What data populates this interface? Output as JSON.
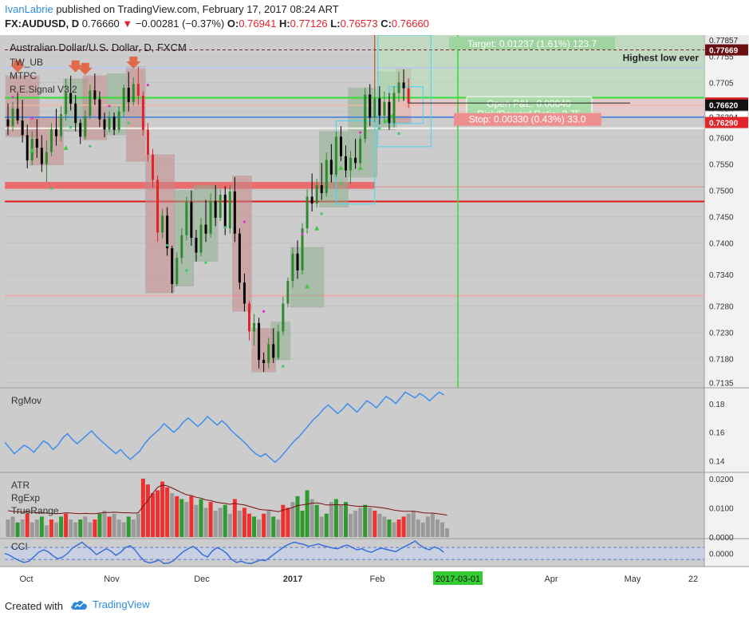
{
  "header": {
    "author": "IvanLabrie",
    "published_text": " published on TradingView.com, February 17, 2017 08:24 ART",
    "symbol": "FX:AUDUSD, D",
    "last": "0.76660",
    "change_arrow": "▼",
    "change": "−0.00281 (−0.37%)",
    "o_label": "O:",
    "o_value": "0.76941",
    "h_label": "H:",
    "h_value": "0.77126",
    "l_label": "L:",
    "l_value": "0.76573",
    "c_label": "C:",
    "c_value": "0.76660"
  },
  "footer": {
    "created_with": "Created with",
    "brand": "TradingView",
    "brand_icon": "cloud-icon"
  },
  "colors": {
    "panel_bg": "#cccccc",
    "bull_body": "#2f8a2f",
    "bear_body": "#000000",
    "red_candle": "#e0242a",
    "green_line": "#33dd33",
    "blue_line": "#3a7bdc",
    "red_line": "#e01818",
    "cyan_box": "#47d5f0",
    "rgmov_line": "#3d8ef0",
    "cci_line": "#3a6fd8"
  },
  "chart_data": [
    {
      "type": "candlestick",
      "title": "Australian Dollar/U.S. Dollar, D, FXCM",
      "indicators": [
        "TW_UB",
        "MTPC",
        "R.E.Signal V3.2"
      ],
      "x_labels": [
        "Oct",
        "Nov",
        "Dec",
        "2017",
        "Feb",
        "2017-03-01",
        "Apr",
        "May",
        "22"
      ],
      "y_ticks": [
        0.7135,
        0.718,
        0.723,
        0.728,
        0.734,
        0.74,
        0.745,
        0.75,
        0.755,
        0.76,
        0.765,
        0.7705,
        0.7755
      ],
      "ylim": [
        0.7125,
        0.7795
      ],
      "price_labels": [
        {
          "value": 0.77857,
          "text": "0.77857",
          "style": "light"
        },
        {
          "value": 0.77669,
          "text": "0.77669",
          "style": "dark-red"
        },
        {
          "value": 0.7666,
          "text": "0.76660",
          "style": "red"
        },
        {
          "value": 0.7662,
          "text": "0.76620",
          "style": "black"
        },
        {
          "value": 0.76394,
          "text": "0.76394",
          "style": "white"
        },
        {
          "value": 0.7629,
          "text": "0.76290",
          "style": "red"
        }
      ],
      "annotations": {
        "highest_low": "Highest low ever",
        "target": "Target: 0.01237 (1.61%) 123.7",
        "open_pnl": "Open P&L: 0.00040",
        "risk_reward": "Risk/Reward Ratio: 3.75",
        "stop": "Stop: 0.00330 (0.43%) 33.0"
      },
      "levels": {
        "dashed_resistance": 0.77669,
        "green_entry": 0.7676,
        "salmon_line": 0.7662,
        "blue_line": 0.7639,
        "pale_line": 0.7618,
        "red_zone": [
          0.7503,
          0.7516
        ],
        "red_line": 0.7479,
        "pink_low": 0.73,
        "lavender_top": 0.7733
      },
      "candles": [
        [
          0.7635,
          0.7665,
          0.7605,
          0.7622
        ],
        [
          0.7622,
          0.7668,
          0.7612,
          0.7655
        ],
        [
          0.7655,
          0.7685,
          0.7626,
          0.7633
        ],
        [
          0.7633,
          0.7672,
          0.7591,
          0.7605
        ],
        [
          0.7605,
          0.7625,
          0.7542,
          0.7557
        ],
        [
          0.7557,
          0.7612,
          0.7548,
          0.7598
        ],
        [
          0.7598,
          0.7635,
          0.7562,
          0.7581
        ],
        [
          0.7581,
          0.7605,
          0.7535,
          0.755
        ],
        [
          0.755,
          0.7595,
          0.7516,
          0.7573
        ],
        [
          0.7573,
          0.7628,
          0.7565,
          0.7616
        ],
        [
          0.7616,
          0.7655,
          0.7585,
          0.7603
        ],
        [
          0.7603,
          0.766,
          0.7593,
          0.7645
        ],
        [
          0.7645,
          0.7712,
          0.7632,
          0.7685
        ],
        [
          0.7685,
          0.7718,
          0.7652,
          0.7665
        ],
        [
          0.7665,
          0.7681,
          0.7612,
          0.7628
        ],
        [
          0.7628,
          0.7635,
          0.7588,
          0.7602
        ],
        [
          0.7602,
          0.7652,
          0.7596,
          0.7641
        ],
        [
          0.7641,
          0.7701,
          0.7636,
          0.769
        ],
        [
          0.769,
          0.7722,
          0.7662,
          0.7673
        ],
        [
          0.7673,
          0.7688,
          0.762,
          0.7635
        ],
        [
          0.7635,
          0.7648,
          0.7601,
          0.7616
        ],
        [
          0.7616,
          0.765,
          0.761,
          0.764
        ],
        [
          0.764,
          0.7648,
          0.7605,
          0.7615
        ],
        [
          0.7615,
          0.766,
          0.761,
          0.765
        ],
        [
          0.765,
          0.7701,
          0.764,
          0.7695
        ],
        [
          0.7695,
          0.7725,
          0.765,
          0.7668
        ],
        [
          0.7668,
          0.7715,
          0.7661,
          0.7702
        ],
        [
          0.7702,
          0.7735,
          0.7662,
          0.768
        ],
        [
          0.768,
          0.7688,
          0.7604,
          0.7615
        ],
        [
          0.7615,
          0.7628,
          0.7555,
          0.7568
        ],
        [
          0.7568,
          0.7579,
          0.7505,
          0.752
        ],
        [
          0.752,
          0.7528,
          0.7402,
          0.742
        ],
        [
          0.742,
          0.7465,
          0.7408,
          0.7452
        ],
        [
          0.7452,
          0.7468,
          0.7376,
          0.739
        ],
        [
          0.739,
          0.7395,
          0.7305,
          0.7322
        ],
        [
          0.7322,
          0.7382,
          0.7318,
          0.7372
        ],
        [
          0.7372,
          0.7428,
          0.736,
          0.7415
        ],
        [
          0.7415,
          0.7488,
          0.7405,
          0.7478
        ],
        [
          0.7478,
          0.75,
          0.7395,
          0.741
        ],
        [
          0.741,
          0.7425,
          0.7365,
          0.7382
        ],
        [
          0.7382,
          0.7448,
          0.7375,
          0.7435
        ],
        [
          0.7435,
          0.7482,
          0.7402,
          0.7418
        ],
        [
          0.7418,
          0.7495,
          0.741,
          0.748
        ],
        [
          0.748,
          0.751,
          0.7432,
          0.7448
        ],
        [
          0.7448,
          0.7502,
          0.7442,
          0.7492
        ],
        [
          0.7492,
          0.7508,
          0.7415,
          0.7428
        ],
        [
          0.7428,
          0.751,
          0.7418,
          0.7498
        ],
        [
          0.7498,
          0.7525,
          0.7402,
          0.7418
        ],
        [
          0.7418,
          0.7428,
          0.7312,
          0.7325
        ],
        [
          0.7325,
          0.7342,
          0.727,
          0.7285
        ],
        [
          0.7285,
          0.729,
          0.7215,
          0.7232
        ],
        [
          0.7232,
          0.7265,
          0.7205,
          0.7248
        ],
        [
          0.7248,
          0.7258,
          0.7162,
          0.7178
        ],
        [
          0.7178,
          0.7192,
          0.7155,
          0.7172
        ],
        [
          0.7172,
          0.722,
          0.7162,
          0.7208
        ],
        [
          0.7208,
          0.7238,
          0.7172,
          0.7182
        ],
        [
          0.7182,
          0.7245,
          0.7178,
          0.7232
        ],
        [
          0.7232,
          0.7298,
          0.7225,
          0.7285
        ],
        [
          0.7285,
          0.7335,
          0.7278,
          0.7328
        ],
        [
          0.7328,
          0.7392,
          0.7315,
          0.738
        ],
        [
          0.738,
          0.7405,
          0.7332,
          0.7348
        ],
        [
          0.7348,
          0.7438,
          0.734,
          0.7428
        ],
        [
          0.7428,
          0.7502,
          0.7418,
          0.7488
        ],
        [
          0.7488,
          0.7532,
          0.746,
          0.7475
        ],
        [
          0.7475,
          0.7522,
          0.7468,
          0.751
        ],
        [
          0.751,
          0.7552,
          0.7482,
          0.7495
        ],
        [
          0.7495,
          0.7572,
          0.7488,
          0.7558
        ],
        [
          0.7558,
          0.7588,
          0.7515,
          0.753
        ],
        [
          0.753,
          0.7612,
          0.7525,
          0.7602
        ],
        [
          0.7602,
          0.7622,
          0.7556,
          0.7565
        ],
        [
          0.7565,
          0.7585,
          0.7525,
          0.7538
        ],
        [
          0.7538,
          0.7575,
          0.7512,
          0.7562
        ],
        [
          0.7562,
          0.7598,
          0.7541,
          0.7552
        ],
        [
          0.7552,
          0.7605,
          0.7545,
          0.7598
        ],
        [
          0.7598,
          0.7695,
          0.759,
          0.7682
        ],
        [
          0.7682,
          0.7702,
          0.7622,
          0.7638
        ],
        [
          0.7638,
          0.7692,
          0.763,
          0.7675
        ],
        [
          0.7675,
          0.7698,
          0.7625,
          0.7642
        ],
        [
          0.7642,
          0.7688,
          0.7628,
          0.7668
        ],
        [
          0.7668,
          0.7685,
          0.7615,
          0.7628
        ],
        [
          0.7628,
          0.7698,
          0.762,
          0.7685
        ],
        [
          0.7685,
          0.7725,
          0.7668,
          0.7705
        ],
        [
          0.7705,
          0.773,
          0.767,
          0.7694
        ],
        [
          0.7694,
          0.7713,
          0.7657,
          0.7666
        ]
      ]
    },
    {
      "type": "line",
      "title": "RgMov",
      "y_ticks": [
        0.14,
        0.16,
        0.18
      ],
      "ylim": [
        0.132,
        0.191
      ],
      "values": [
        0.153,
        0.149,
        0.145,
        0.148,
        0.151,
        0.149,
        0.146,
        0.15,
        0.154,
        0.152,
        0.148,
        0.151,
        0.156,
        0.159,
        0.155,
        0.152,
        0.155,
        0.158,
        0.161,
        0.157,
        0.154,
        0.151,
        0.148,
        0.145,
        0.148,
        0.144,
        0.141,
        0.144,
        0.147,
        0.152,
        0.156,
        0.159,
        0.162,
        0.166,
        0.163,
        0.16,
        0.163,
        0.167,
        0.17,
        0.167,
        0.164,
        0.167,
        0.171,
        0.168,
        0.165,
        0.168,
        0.165,
        0.161,
        0.158,
        0.155,
        0.152,
        0.148,
        0.145,
        0.143,
        0.145,
        0.142,
        0.139,
        0.142,
        0.146,
        0.15,
        0.154,
        0.157,
        0.161,
        0.165,
        0.169,
        0.172,
        0.176,
        0.179,
        0.176,
        0.173,
        0.176,
        0.18,
        0.177,
        0.174,
        0.178,
        0.182,
        0.18,
        0.177,
        0.181,
        0.185,
        0.183,
        0.18,
        0.184,
        0.188,
        0.186,
        0.184,
        0.187,
        0.185,
        0.182,
        0.185,
        0.188,
        0.186
      ]
    },
    {
      "type": "bar",
      "title": "ATR",
      "legend": [
        "RgExp",
        "TrueRange"
      ],
      "y_ticks": [
        0.0,
        0.01,
        0.02
      ],
      "ylim": [
        0,
        0.0205
      ],
      "values": [
        0.006,
        0.007,
        0.005,
        0.006,
        0.008,
        0.005,
        0.006,
        0.007,
        0.004,
        0.006,
        0.005,
        0.007,
        0.008,
        0.006,
        0.005,
        0.006,
        0.007,
        0.005,
        0.006,
        0.008,
        0.009,
        0.007,
        0.008,
        0.006,
        0.005,
        0.007,
        0.006,
        0.008,
        0.02,
        0.018,
        0.015,
        0.016,
        0.019,
        0.017,
        0.015,
        0.014,
        0.013,
        0.012,
        0.014,
        0.011,
        0.013,
        0.01,
        0.012,
        0.009,
        0.01,
        0.011,
        0.008,
        0.013,
        0.009,
        0.01,
        0.008,
        0.007,
        0.006,
        0.008,
        0.009,
        0.007,
        0.006,
        0.011,
        0.01,
        0.012,
        0.014,
        0.009,
        0.016,
        0.013,
        0.011,
        0.007,
        0.008,
        0.012,
        0.013,
        0.011,
        0.012,
        0.008,
        0.009,
        0.01,
        0.011,
        0.01,
        0.009,
        0.008,
        0.007,
        0.006,
        0.005,
        0.006,
        0.007,
        0.008,
        0.009,
        0.006,
        0.005,
        0.007,
        0.008,
        0.006,
        0.005,
        0.003
      ],
      "colors": [
        "gray",
        "gray",
        "green",
        "gray",
        "red",
        "gray",
        "gray",
        "green",
        "gray",
        "red",
        "gray",
        "green",
        "red",
        "gray",
        "gray",
        "green",
        "gray",
        "gray",
        "red",
        "green",
        "gray",
        "red",
        "gray",
        "gray",
        "gray",
        "green",
        "gray",
        "gray",
        "red",
        "red",
        "red",
        "red",
        "red",
        "red",
        "gray",
        "red",
        "green",
        "gray",
        "red",
        "gray",
        "green",
        "gray",
        "red",
        "gray",
        "gray",
        "green",
        "gray",
        "red",
        "gray",
        "red",
        "red",
        "green",
        "gray",
        "red",
        "gray",
        "green",
        "gray",
        "red",
        "red",
        "gray",
        "green",
        "green",
        "green",
        "gray",
        "green",
        "gray",
        "green",
        "gray",
        "green",
        "gray",
        "green",
        "gray",
        "gray",
        "gray",
        "green",
        "gray",
        "red",
        "gray",
        "gray",
        "green",
        "gray",
        "red",
        "red",
        "gray",
        "gray",
        "gray",
        "gray",
        "gray",
        "gray",
        "gray",
        "gray",
        "gray"
      ],
      "rgexp": [
        0.009,
        0.0088,
        0.0086,
        0.0085,
        0.0086,
        0.0084,
        0.0083,
        0.0084,
        0.0082,
        0.0081,
        0.008,
        0.0081,
        0.0083,
        0.0082,
        0.0081,
        0.008,
        0.0081,
        0.008,
        0.008,
        0.0082,
        0.0084,
        0.0084,
        0.0085,
        0.0084,
        0.0083,
        0.0083,
        0.0082,
        0.0083,
        0.0105,
        0.0125,
        0.015,
        0.017,
        0.0178,
        0.0175,
        0.0168,
        0.016,
        0.0152,
        0.0145,
        0.0142,
        0.0136,
        0.0133,
        0.0127,
        0.0125,
        0.012,
        0.0117,
        0.0115,
        0.0112,
        0.0115,
        0.0112,
        0.011,
        0.0105,
        0.01,
        0.0095,
        0.0093,
        0.0092,
        0.009,
        0.0087,
        0.0092,
        0.0096,
        0.0101,
        0.0108,
        0.011,
        0.0113,
        0.0116,
        0.0117,
        0.0114,
        0.011,
        0.011,
        0.0111,
        0.011,
        0.0111,
        0.0108,
        0.0106,
        0.0105,
        0.0106,
        0.0105,
        0.0103,
        0.0101,
        0.0099,
        0.0096,
        0.0092,
        0.009,
        0.0088,
        0.0088,
        0.0088,
        0.0086,
        0.0083,
        0.0082,
        0.0082,
        0.008,
        0.0078,
        0.0075
      ]
    },
    {
      "type": "line",
      "title": "CCI",
      "y_ticks": [
        0.0
      ],
      "band": [
        -100,
        100
      ],
      "ylim": [
        -220,
        250
      ],
      "values": [
        0,
        -30,
        -80,
        -120,
        -150,
        -130,
        -60,
        20,
        60,
        30,
        -40,
        -90,
        -60,
        0,
        90,
        140,
        190,
        120,
        60,
        -20,
        30,
        80,
        40,
        -30,
        20,
        100,
        130,
        60,
        -50,
        -130,
        -160,
        -140,
        -110,
        -170,
        -160,
        -120,
        -40,
        30,
        80,
        120,
        60,
        -20,
        -60,
        40,
        100,
        60,
        0,
        -100,
        -150,
        -130,
        -160,
        -170,
        -140,
        -110,
        -120,
        -60,
        0,
        60,
        120,
        160,
        190,
        170,
        150,
        120,
        140,
        160,
        130,
        110,
        90,
        80,
        120,
        140,
        100,
        60,
        80,
        40,
        20,
        60,
        90,
        70,
        50,
        30,
        80,
        120,
        160,
        210,
        140,
        90,
        60,
        110,
        80,
        20
      ]
    }
  ]
}
